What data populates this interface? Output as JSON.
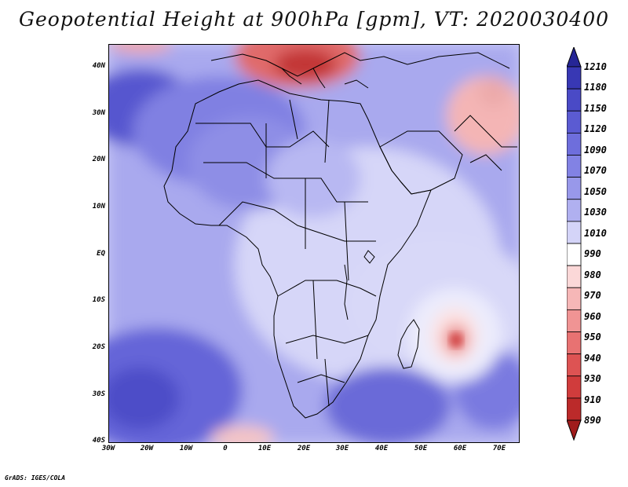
{
  "title": "Geopotential Height at 900hPa [gpm], VT: 2020030400",
  "footer": "GrADS: IGES/COLA",
  "lat_labels": [
    "40N",
    "30N",
    "20N",
    "10N",
    "EQ",
    "10S",
    "20S",
    "30S",
    "40S"
  ],
  "lon_labels": [
    "30W",
    "20W",
    "10W",
    "0",
    "10E",
    "20E",
    "30E",
    "40E",
    "50E",
    "60E",
    "70E"
  ],
  "colorbar": {
    "levels": [
      "1210",
      "1180",
      "1150",
      "1120",
      "1090",
      "1070",
      "1050",
      "1030",
      "1010",
      "990",
      "980",
      "970",
      "960",
      "950",
      "940",
      "930",
      "910",
      "890"
    ],
    "colors": [
      "#2a2a9e",
      "#3838b4",
      "#4a4ac6",
      "#5b5bd2",
      "#6e6edc",
      "#8282e4",
      "#9898ea",
      "#b0b0f0",
      "#d4d4f8",
      "#ffffff",
      "#fbd8d8",
      "#f6b7b7",
      "#f09494",
      "#e87272",
      "#dd5353",
      "#d03c3c",
      "#bb2a2a",
      "#a01c1c"
    ]
  }
}
